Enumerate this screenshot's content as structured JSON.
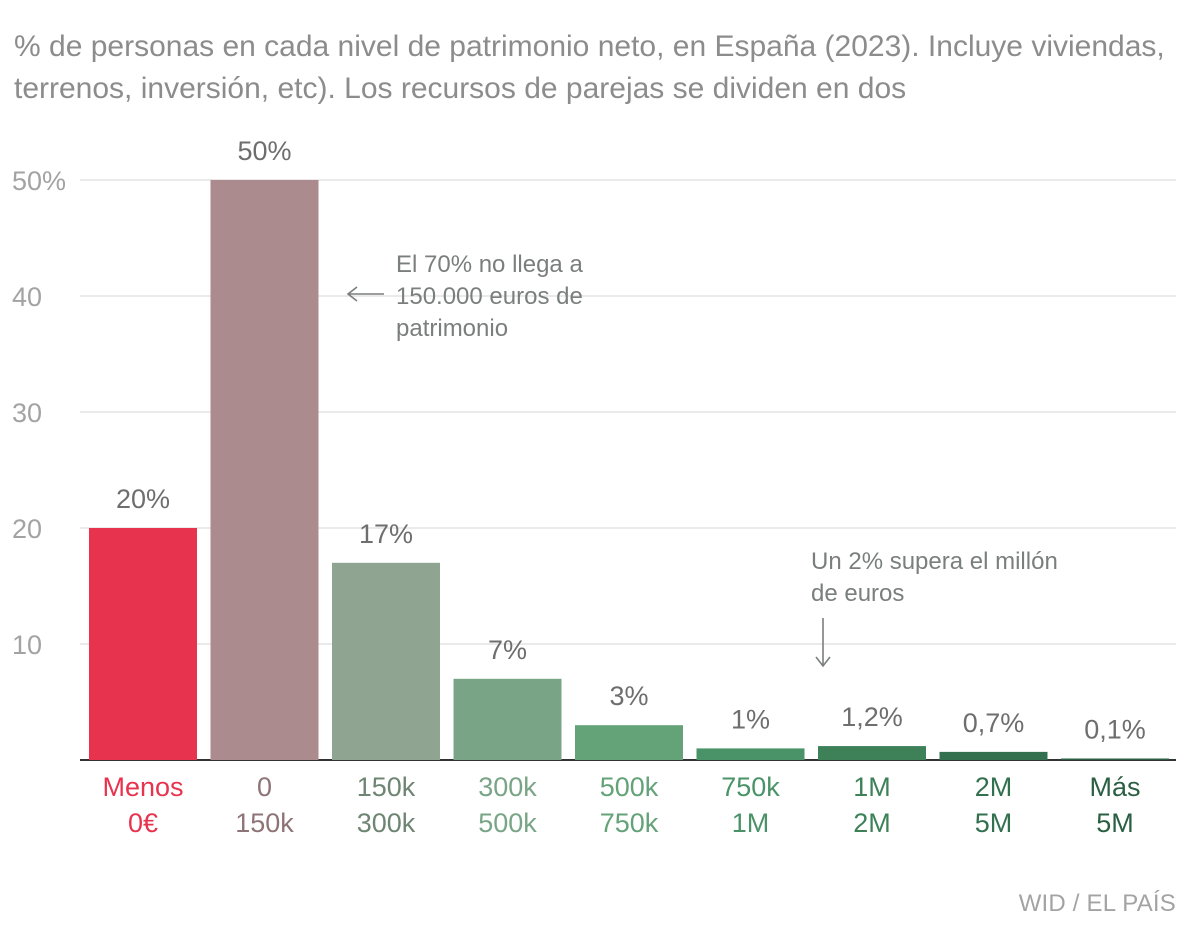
{
  "chart_data": {
    "type": "bar",
    "title": "% de personas en cada nivel de patrimonio neto, en España (2023). Incluye viviendas, terrenos, inversión, etc). Los recursos de parejas se dividen en dos",
    "categories": [
      [
        "Menos",
        "0€"
      ],
      [
        "0",
        "150k"
      ],
      [
        "150k",
        "300k"
      ],
      [
        "300k",
        "500k"
      ],
      [
        "500k",
        "750k"
      ],
      [
        "750k",
        "1M"
      ],
      [
        "1M",
        "2M"
      ],
      [
        "2M",
        "5M"
      ],
      [
        "Más",
        "5M"
      ]
    ],
    "values": [
      20,
      50,
      17,
      7,
      3,
      1,
      1.2,
      0.7,
      0.1
    ],
    "value_labels": [
      "20%",
      "50%",
      "17%",
      "7%",
      "3%",
      "1%",
      "1,2%",
      "0,7%",
      "0,1%"
    ],
    "ylim": [
      0,
      50
    ],
    "yticks": [
      10,
      20,
      30,
      40,
      50
    ],
    "ytick_labels": [
      "10",
      "20",
      "30",
      "40",
      "50%"
    ],
    "grid": true,
    "colors": [
      "#e8334f",
      "#ac8b8e",
      "#8fa592",
      "#79a586",
      "#64a278",
      "#4a9368",
      "#3e8159",
      "#33704f",
      "#2b5f43"
    ],
    "annotations": [
      {
        "lines": [
          "El 70% no llega a",
          "150.000 euros de",
          "patrimonio"
        ],
        "arrow": "left"
      },
      {
        "lines": [
          "Un 2% supera el millón",
          "de euros"
        ],
        "arrow": "down"
      }
    ],
    "source": "WID / EL PAÍS"
  }
}
